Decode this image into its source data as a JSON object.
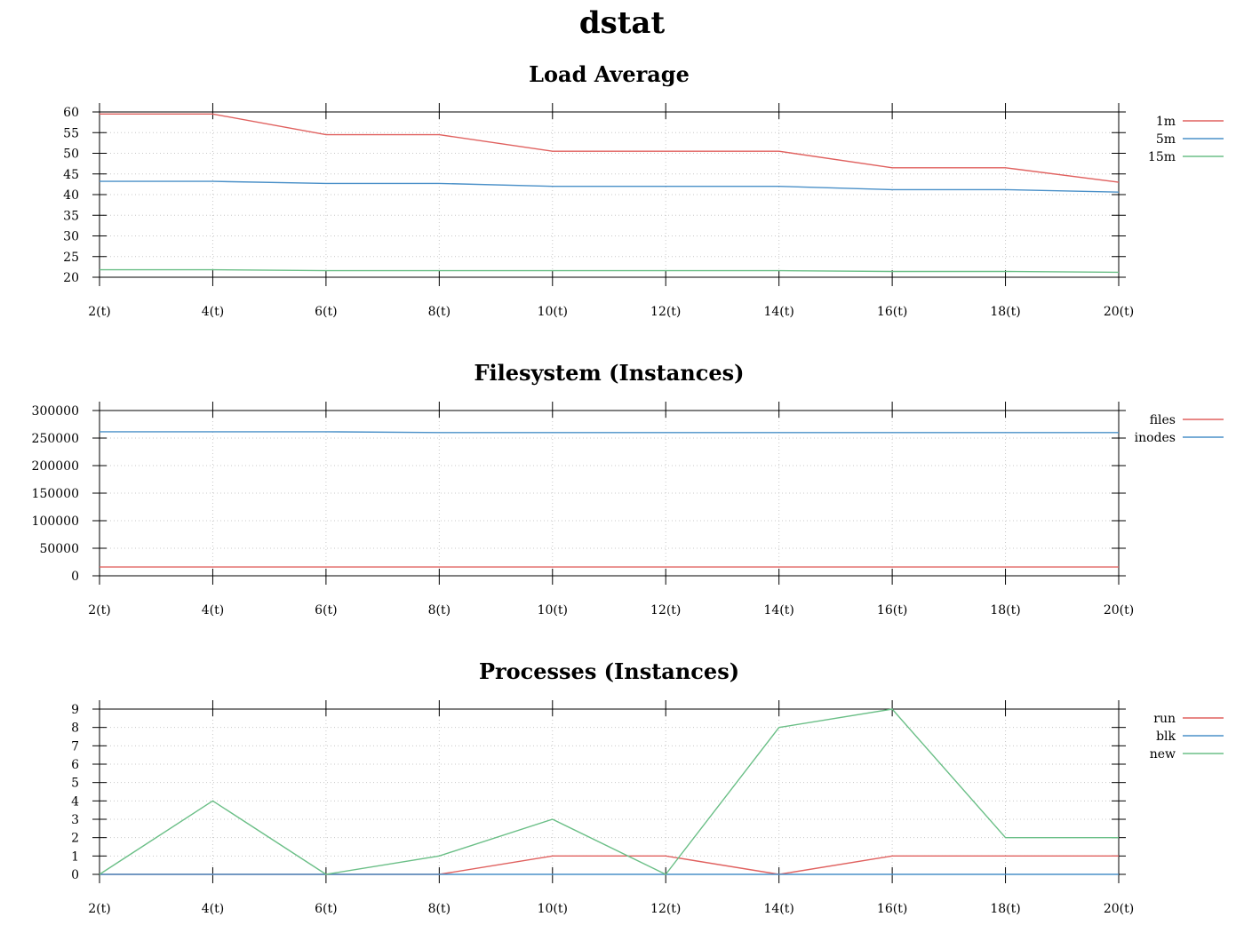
{
  "title": "dstat",
  "colors": {
    "red": "#e0615f",
    "blue": "#4a90c8",
    "green": "#6bbf87"
  },
  "chart_data": [
    {
      "type": "line",
      "title": "Load Average",
      "x_labels": [
        "2(t)",
        "4(t)",
        "6(t)",
        "8(t)",
        "10(t)",
        "12(t)",
        "14(t)",
        "16(t)",
        "18(t)",
        "20(t)"
      ],
      "x": [
        2,
        4,
        6,
        8,
        10,
        12,
        14,
        16,
        18,
        20
      ],
      "ylim": [
        20,
        60
      ],
      "yticks": [
        20,
        25,
        30,
        35,
        40,
        45,
        50,
        55,
        60
      ],
      "grid": true,
      "legend": "top-right",
      "series": [
        {
          "name": "1m",
          "color": "#e0615f",
          "values": [
            59.5,
            59.5,
            54.5,
            54.5,
            50.5,
            50.5,
            50.5,
            46.5,
            46.5,
            43
          ]
        },
        {
          "name": "5m",
          "color": "#4a90c8",
          "values": [
            43.2,
            43.2,
            42.7,
            42.7,
            42,
            42,
            42,
            41.2,
            41.2,
            40.6
          ]
        },
        {
          "name": "15m",
          "color": "#6bbf87",
          "values": [
            21.8,
            21.8,
            21.6,
            21.6,
            21.6,
            21.6,
            21.6,
            21.4,
            21.4,
            21.2
          ]
        }
      ]
    },
    {
      "type": "line",
      "title": "Filesystem (Instances)",
      "x_labels": [
        "2(t)",
        "4(t)",
        "6(t)",
        "8(t)",
        "10(t)",
        "12(t)",
        "14(t)",
        "16(t)",
        "18(t)",
        "20(t)"
      ],
      "x": [
        2,
        4,
        6,
        8,
        10,
        12,
        14,
        16,
        18,
        20
      ],
      "ylim": [
        0,
        300000
      ],
      "yticks": [
        0,
        50000,
        100000,
        150000,
        200000,
        250000,
        300000
      ],
      "grid": true,
      "legend": "top-right",
      "series": [
        {
          "name": "files",
          "color": "#e0615f",
          "values": [
            16000,
            16000,
            16000,
            16000,
            16000,
            16000,
            16000,
            16000,
            16000,
            16000
          ]
        },
        {
          "name": "inodes",
          "color": "#4a90c8",
          "values": [
            261500,
            261500,
            261500,
            260000,
            260000,
            260000,
            260000,
            260000,
            260000,
            260000
          ]
        }
      ]
    },
    {
      "type": "line",
      "title": "Processes (Instances)",
      "x_labels": [
        "2(t)",
        "4(t)",
        "6(t)",
        "8(t)",
        "10(t)",
        "12(t)",
        "14(t)",
        "16(t)",
        "18(t)",
        "20(t)"
      ],
      "x": [
        2,
        4,
        6,
        8,
        10,
        12,
        14,
        16,
        18,
        20
      ],
      "ylim": [
        0,
        9
      ],
      "yticks": [
        0,
        1,
        2,
        3,
        4,
        5,
        6,
        7,
        8,
        9
      ],
      "grid": true,
      "legend": "top-right",
      "series": [
        {
          "name": "run",
          "color": "#e0615f",
          "values": [
            0,
            0,
            0,
            0,
            1,
            1,
            0,
            1,
            1,
            1
          ]
        },
        {
          "name": "blk",
          "color": "#4a90c8",
          "values": [
            0,
            0,
            0,
            0,
            0,
            0,
            0,
            0,
            0,
            0
          ]
        },
        {
          "name": "new",
          "color": "#6bbf87",
          "values": [
            0,
            4,
            0,
            1,
            3,
            0,
            8,
            9,
            2,
            2
          ]
        }
      ]
    }
  ]
}
